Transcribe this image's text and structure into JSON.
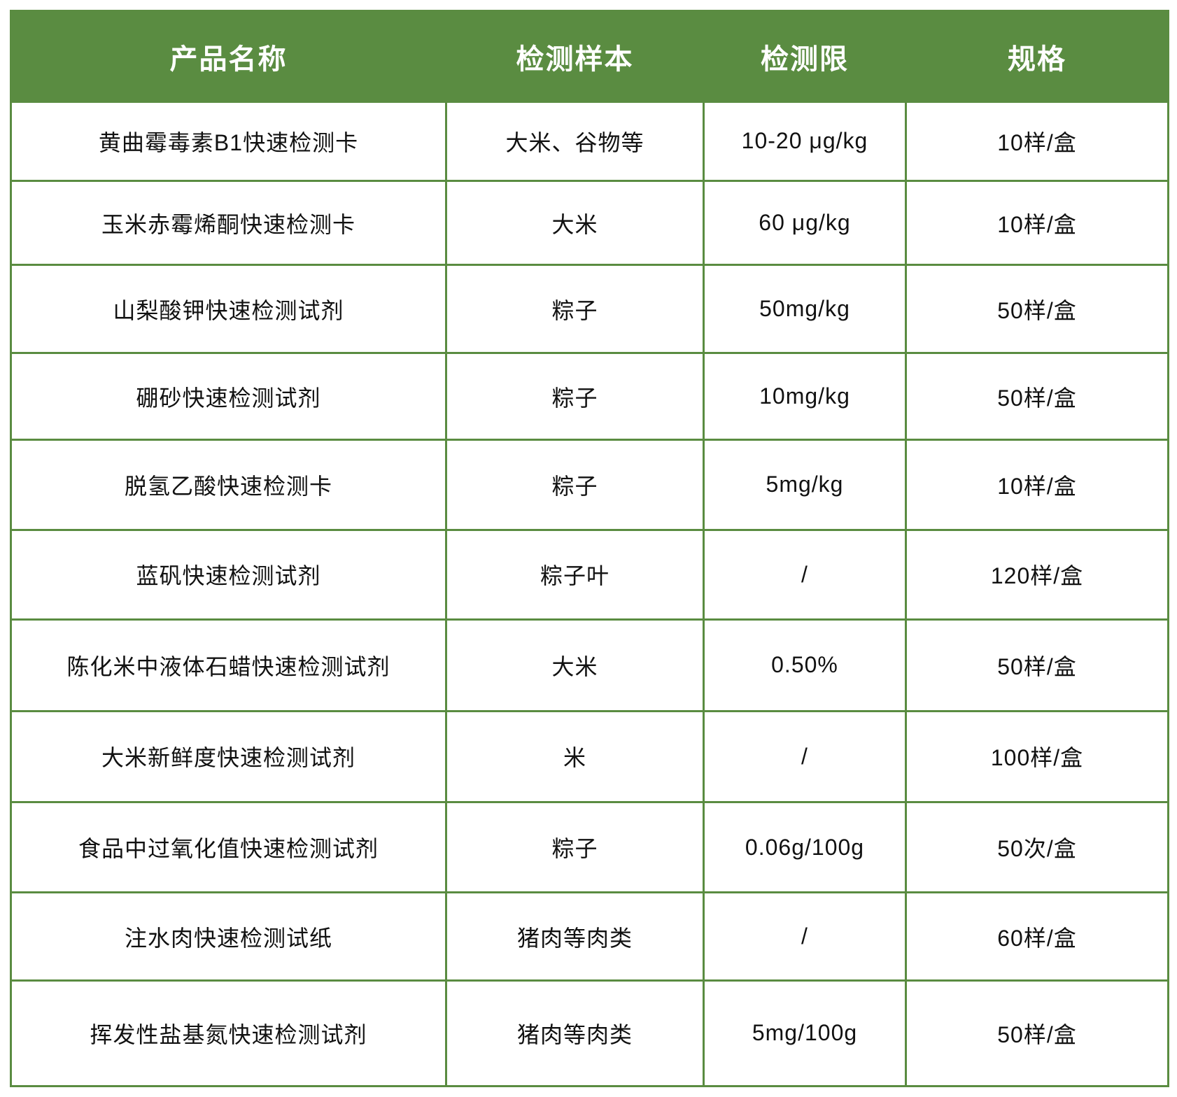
{
  "colors": {
    "header_bg": "#5a8c41",
    "header_text": "#ffffff",
    "grid_line": "#5a8c41",
    "body_text": "#111111",
    "page_bg": "#ffffff"
  },
  "chart_data": {
    "type": "table",
    "columns": [
      "产品名称",
      "检测样本",
      "检测限",
      "规格"
    ],
    "rows": [
      [
        "黄曲霉毒素B1快速检测卡",
        "大米、谷物等",
        "10-20 μg/kg",
        "10样/盒"
      ],
      [
        "玉米赤霉烯酮快速检测卡",
        "大米",
        "60 μg/kg",
        "10样/盒"
      ],
      [
        "山梨酸钾快速检测试剂",
        "粽子",
        "50mg/kg",
        "50样/盒"
      ],
      [
        "硼砂快速检测试剂",
        "粽子",
        "10mg/kg",
        "50样/盒"
      ],
      [
        "脱氢乙酸快速检测卡",
        "粽子",
        "5mg/kg",
        "10样/盒"
      ],
      [
        "蓝矾快速检测试剂",
        "粽子叶",
        "/",
        "120样/盒"
      ],
      [
        "陈化米中液体石蜡快速检测试剂",
        "大米",
        "0.50%",
        "50样/盒"
      ],
      [
        "大米新鲜度快速检测试剂",
        "米",
        "/",
        "100样/盒"
      ],
      [
        "食品中过氧化值快速检测试剂",
        "粽子",
        "0.06g/100g",
        "50次/盒"
      ],
      [
        "注水肉快速检测试纸",
        "猪肉等肉类",
        "/",
        "60样/盒"
      ],
      [
        "挥发性盐基氮快速检测试剂",
        "猪肉等肉类",
        "5mg/100g",
        "50样/盒"
      ]
    ]
  }
}
